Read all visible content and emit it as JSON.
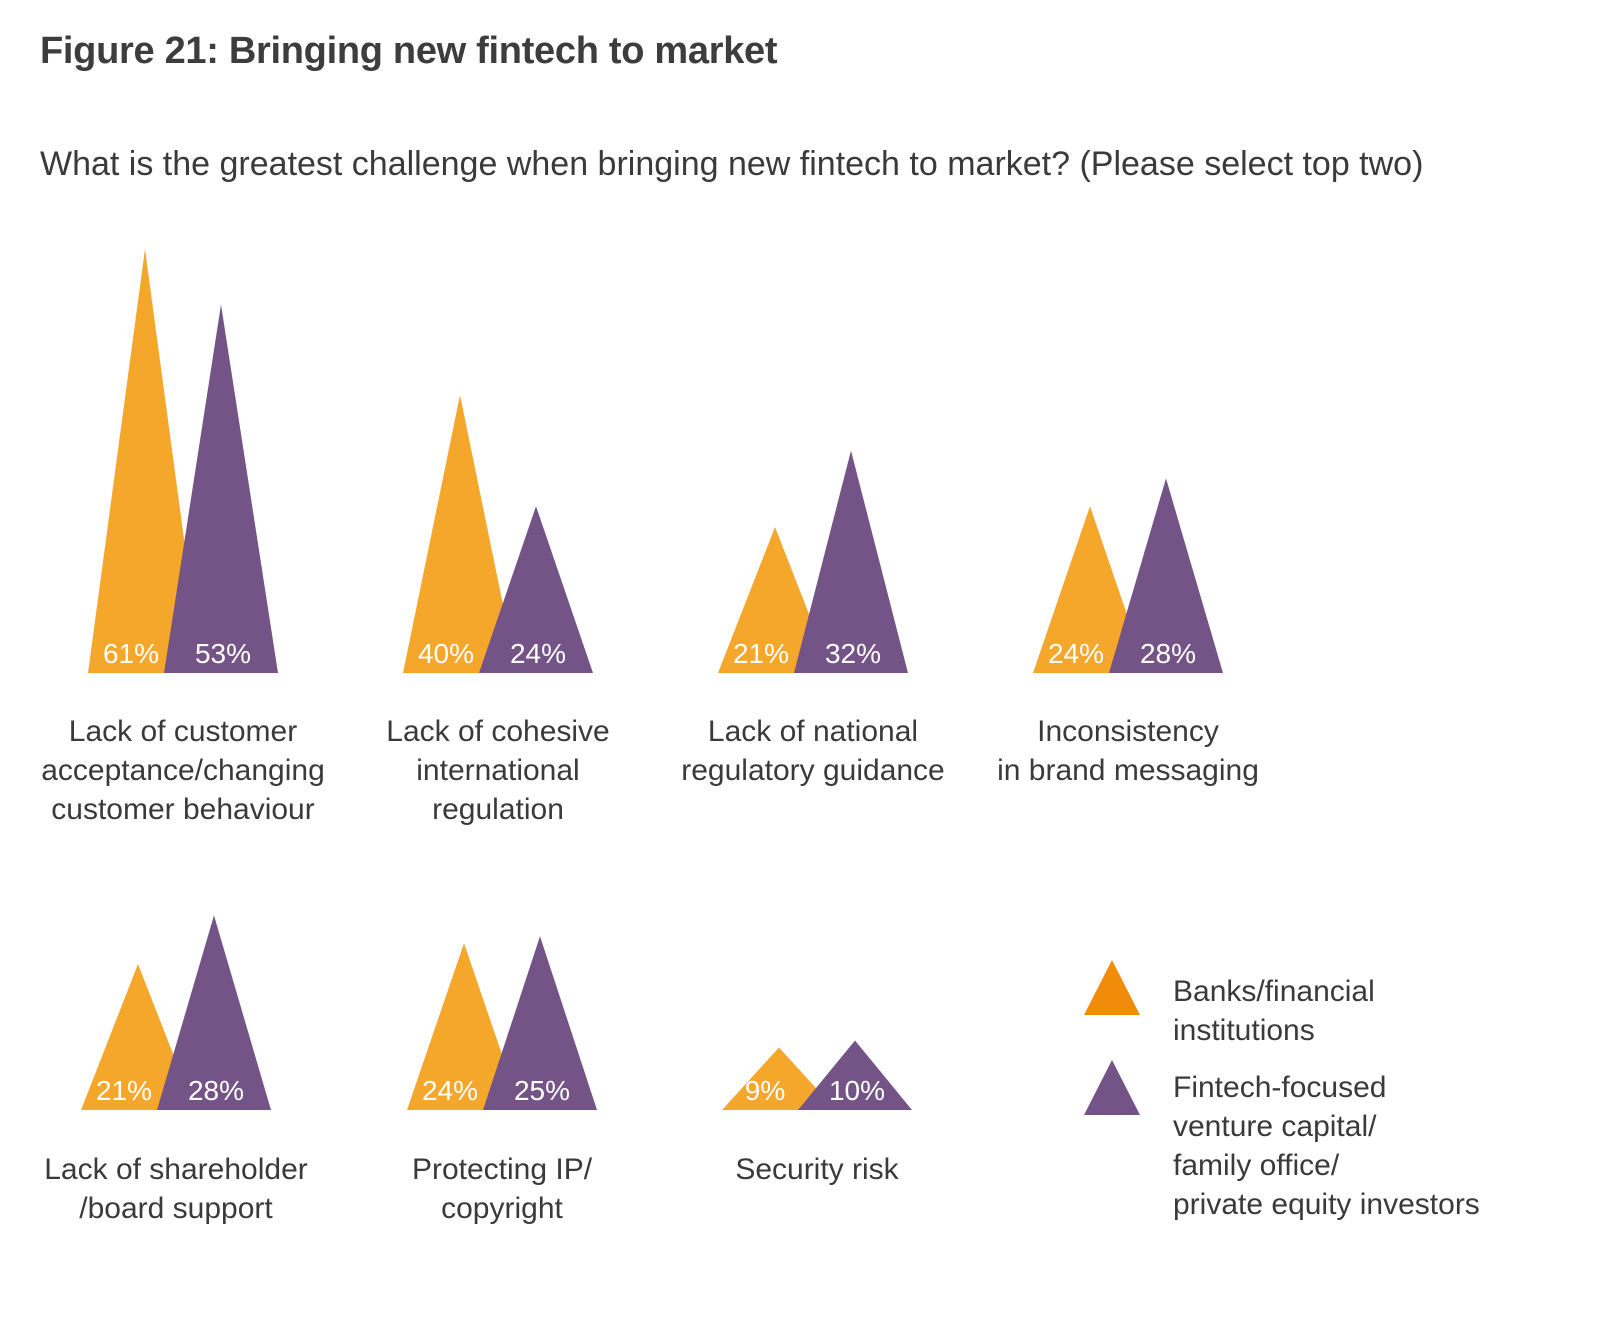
{
  "title": "Figure 21: Bringing new fintech to market",
  "question": "What is the greatest challenge when bringing new fintech to market? (Please select top two)",
  "colors": {
    "banks": "#f5a72c",
    "fintech": "#745386",
    "legend_banks": "#f08c0a",
    "value_label": "#ffffff"
  },
  "chart_data": {
    "type": "bar",
    "mark": "triangle",
    "value_format": "percent",
    "categories": [
      "Lack of customer\nacceptance/changing\ncustomer behaviour",
      "Lack of cohesive\ninternational\nregulation",
      "Lack of national\nregulatory guidance",
      "Inconsistency\nin brand messaging",
      "Lack of shareholder\n/board support",
      "Protecting IP/\ncopyright",
      "Security risk"
    ],
    "series": [
      {
        "name": "Banks/financial\ninstitutions",
        "values": [
          61,
          40,
          21,
          24,
          21,
          24,
          9
        ]
      },
      {
        "name": "Fintech-focused\nventure capital/\nfamily office/\nprivate equity investors",
        "values": [
          53,
          24,
          32,
          28,
          28,
          25,
          10
        ]
      }
    ],
    "value_labels": [
      [
        "61%",
        "53%"
      ],
      [
        "40%",
        "24%"
      ],
      [
        "21%",
        "32%"
      ],
      [
        "24%",
        "28%"
      ],
      [
        "21%",
        "28%"
      ],
      [
        "24%",
        "25%"
      ],
      [
        "9%",
        "10%"
      ]
    ],
    "grid": false,
    "legend_position": "bottom-right"
  }
}
